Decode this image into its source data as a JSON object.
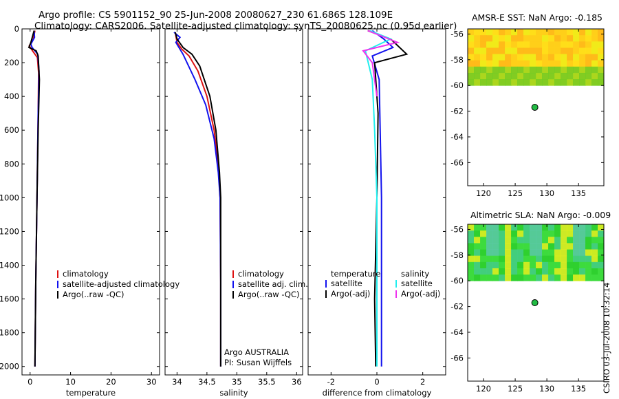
{
  "title": {
    "line1": "Argo profile: CS 5901152_90 25-Jun-2008 20080627_230 61.686S 128.109E",
    "line2": "Climatology: CARS2006. Satellite-adjusted climatology: synTS_20080625.nc (0.95d earlier)"
  },
  "colors": {
    "climatology": "#dd1111",
    "satellite": "#1111ee",
    "argo": "#000000",
    "sal_satellite": "#22eeee",
    "sal_argo": "#ee33ee",
    "dot": "#22bb44"
  },
  "chart_data": [
    {
      "type": "line",
      "id": "temperature",
      "xlabel": "temperature",
      "xlim": [
        -2,
        32
      ],
      "ylim": [
        2050,
        0
      ],
      "xticks": [
        0,
        10,
        20,
        30
      ],
      "yticks": [
        0,
        200,
        400,
        600,
        800,
        1000,
        1200,
        1400,
        1600,
        1800,
        2000
      ],
      "legend": [
        "climatology",
        "satellite-adjusted climatology",
        "Argo(..raw -QC)"
      ],
      "series": [
        {
          "name": "climatology",
          "color": "#dd1111",
          "points": [
            [
              1.2,
              10
            ],
            [
              0.8,
              60
            ],
            [
              -0.2,
              100
            ],
            [
              0.6,
              130
            ],
            [
              1.8,
              170
            ],
            [
              2.1,
              260
            ],
            [
              2.0,
              500
            ],
            [
              1.7,
              1000
            ],
            [
              1.4,
              1500
            ],
            [
              1.2,
              2000
            ]
          ]
        },
        {
          "name": "satellite-adjusted climatology",
          "color": "#1111ee",
          "points": [
            [
              1.0,
              10
            ],
            [
              1.1,
              50
            ],
            [
              0.2,
              90
            ],
            [
              0.5,
              110
            ],
            [
              1.9,
              150
            ],
            [
              2.2,
              250
            ],
            [
              2.0,
              500
            ],
            [
              1.7,
              1000
            ],
            [
              1.4,
              1500
            ],
            [
              1.2,
              2000
            ]
          ]
        },
        {
          "name": "Argo(..raw -QC)",
          "color": "#000000",
          "points": [
            [
              1.0,
              10
            ],
            [
              0.2,
              80
            ],
            [
              -0.3,
              110
            ],
            [
              1.5,
              130
            ],
            [
              2.0,
              160
            ],
            [
              2.3,
              300
            ],
            [
              2.0,
              600
            ],
            [
              1.7,
              1000
            ],
            [
              1.4,
              1500
            ],
            [
              1.2,
              2000
            ]
          ]
        }
      ]
    },
    {
      "type": "line",
      "id": "salinity",
      "xlabel": "salinity",
      "xlim": [
        33.8,
        36.1
      ],
      "ylim": [
        2050,
        0
      ],
      "xticks": [
        34,
        34.5,
        35,
        35.5,
        36
      ],
      "yticks": [
        0,
        200,
        400,
        600,
        800,
        1000,
        1200,
        1400,
        1600,
        1800,
        2000
      ],
      "legend": [
        "climatology",
        "satellite adj. clim.",
        "Argo(..raw -QC)"
      ],
      "annotation": [
        "Argo AUSTRALIA",
        "PI: Susan Wijffels"
      ],
      "series": [
        {
          "name": "climatology",
          "color": "#dd1111",
          "points": [
            [
              33.97,
              20
            ],
            [
              34.0,
              80
            ],
            [
              34.08,
              120
            ],
            [
              34.2,
              160
            ],
            [
              34.35,
              250
            ],
            [
              34.5,
              400
            ],
            [
              34.62,
              600
            ],
            [
              34.69,
              800
            ],
            [
              34.72,
              1000
            ],
            [
              34.73,
              1500
            ],
            [
              34.73,
              2000
            ]
          ]
        },
        {
          "name": "satellite adj. clim.",
          "color": "#1111ee",
          "points": [
            [
              33.95,
              20
            ],
            [
              34.05,
              50
            ],
            [
              33.98,
              80
            ],
            [
              34.1,
              150
            ],
            [
              34.3,
              300
            ],
            [
              34.48,
              450
            ],
            [
              34.62,
              650
            ],
            [
              34.69,
              850
            ],
            [
              34.72,
              1000
            ],
            [
              34.73,
              1500
            ],
            [
              34.73,
              2000
            ]
          ]
        },
        {
          "name": "Argo(..raw -QC)",
          "color": "#000000",
          "points": [
            [
              33.97,
              20
            ],
            [
              34.0,
              60
            ],
            [
              34.1,
              110
            ],
            [
              34.25,
              150
            ],
            [
              34.38,
              220
            ],
            [
              34.55,
              400
            ],
            [
              34.65,
              600
            ],
            [
              34.71,
              850
            ],
            [
              34.73,
              1000
            ],
            [
              34.73,
              1500
            ],
            [
              34.73,
              2000
            ]
          ]
        }
      ]
    },
    {
      "type": "line",
      "id": "difference",
      "xlabel": "difference from climatology",
      "xlim": [
        -3,
        3
      ],
      "ylim": [
        2050,
        0
      ],
      "xticks": [
        -2,
        0,
        2
      ],
      "yticks": [
        0,
        200,
        400,
        600,
        800,
        1000,
        1200,
        1400,
        1600,
        1800,
        2000
      ],
      "legend_titles": [
        "temperature",
        "salinity"
      ],
      "legend": [
        "satellite",
        "Argo(-adj)",
        "satellite",
        "Argo(-adj)"
      ],
      "series": [
        {
          "name": "satellite",
          "group": "temperature",
          "color": "#1111ee",
          "points": [
            [
              -0.2,
              10
            ],
            [
              0.3,
              60
            ],
            [
              0.7,
              110
            ],
            [
              -0.2,
              160
            ],
            [
              0.1,
              300
            ],
            [
              0.2,
              1000
            ],
            [
              0.2,
              2000
            ]
          ]
        },
        {
          "name": "Argo(-adj)",
          "group": "temperature",
          "color": "#000000",
          "points": [
            [
              -0.4,
              10
            ],
            [
              0.6,
              60
            ],
            [
              1.3,
              150
            ],
            [
              -0.1,
              200
            ],
            [
              0.05,
              500
            ],
            [
              0.0,
              1000
            ],
            [
              -0.1,
              1600
            ],
            [
              -0.05,
              2000
            ]
          ]
        },
        {
          "name": "satellite",
          "group": "salinity",
          "color": "#22eeee",
          "points": [
            [
              -0.3,
              10
            ],
            [
              0.6,
              60
            ],
            [
              -0.5,
              130
            ],
            [
              -0.2,
              300
            ],
            [
              -0.1,
              600
            ],
            [
              0.0,
              1000
            ],
            [
              0.0,
              2000
            ]
          ]
        },
        {
          "name": "Argo(-adj)",
          "group": "salinity",
          "color": "#ee33ee",
          "points": [
            [
              -0.4,
              10
            ],
            [
              0.9,
              80
            ],
            [
              -0.6,
              130
            ],
            [
              -0.2,
              200
            ],
            [
              0.0,
              400
            ]
          ]
        }
      ]
    },
    {
      "type": "heatmap",
      "id": "sst_map",
      "title": "AMSR-E SST: NaN Argo: -0.185",
      "xlim": [
        117.5,
        139
      ],
      "ylim": [
        -67.8,
        -55.6
      ],
      "data_lat_range": [
        -60,
        -55.6
      ],
      "xticks": [
        120,
        125,
        130,
        135
      ],
      "yticks": [
        -56,
        -58,
        -60,
        -62,
        -64,
        -66
      ],
      "point": {
        "lon": 128.1,
        "lat": -61.7
      }
    },
    {
      "type": "heatmap",
      "id": "sla_map",
      "title": "Altimetric SLA: NaN Argo: -0.009",
      "xlim": [
        117.5,
        139
      ],
      "ylim": [
        -67.8,
        -55.6
      ],
      "data_lat_range": [
        -60,
        -55.6
      ],
      "xticks": [
        120,
        125,
        130,
        135
      ],
      "yticks": [
        -56,
        -58,
        -60,
        -62,
        -64,
        -66
      ],
      "point": {
        "lon": 128.1,
        "lat": -61.7
      }
    }
  ],
  "stamp": "CSIRO 03-Jul-2008 10:32:14"
}
